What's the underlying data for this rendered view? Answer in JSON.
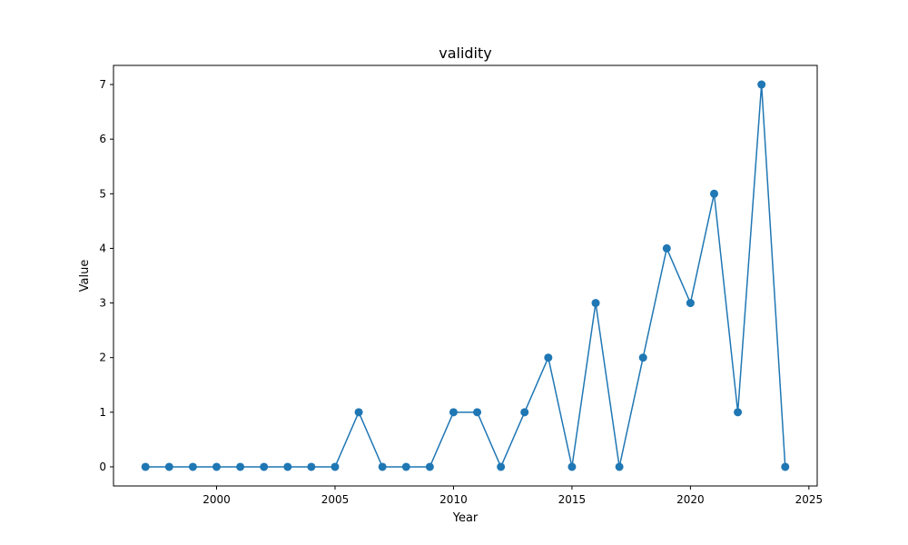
{
  "chart_data": {
    "type": "line",
    "title": "validity",
    "xlabel": "Year",
    "ylabel": "Value",
    "xlim": [
      1995.65,
      2025.35
    ],
    "ylim": [
      -0.35,
      7.35
    ],
    "xticks": [
      2000,
      2005,
      2010,
      2015,
      2020,
      2025
    ],
    "yticks": [
      0,
      1,
      2,
      3,
      4,
      5,
      6,
      7
    ],
    "grid": false,
    "series": [
      {
        "color": "#1f77b4",
        "marker": "circle",
        "x": [
          1997,
          1998,
          1999,
          2000,
          2001,
          2002,
          2003,
          2004,
          2005,
          2006,
          2007,
          2008,
          2009,
          2010,
          2011,
          2012,
          2013,
          2014,
          2015,
          2016,
          2017,
          2018,
          2019,
          2020,
          2021,
          2022,
          2023,
          2024
        ],
        "y": [
          0,
          0,
          0,
          0,
          0,
          0,
          0,
          0,
          0,
          1,
          0,
          0,
          0,
          1,
          1,
          0,
          1,
          2,
          0,
          3,
          0,
          2,
          4,
          3,
          5,
          1,
          7,
          0
        ]
      }
    ]
  }
}
